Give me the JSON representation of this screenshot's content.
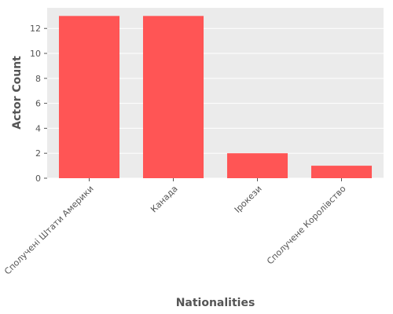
{
  "chart_data": {
    "type": "bar",
    "title": "",
    "xlabel": "Nationalities",
    "ylabel": "Actor Count",
    "categories": [
      "Сполучені Штати Америки",
      "Канада",
      "Ірокези",
      "Сполучене Королівство"
    ],
    "values": [
      13,
      13,
      2,
      1
    ],
    "ylim": [
      0,
      13.65
    ],
    "yticks": [
      0,
      2,
      4,
      6,
      8,
      10,
      12
    ],
    "grid": true,
    "bar_color": "#ff5555",
    "plot_background": "#ebebeb",
    "grid_color": "#ffffff"
  }
}
